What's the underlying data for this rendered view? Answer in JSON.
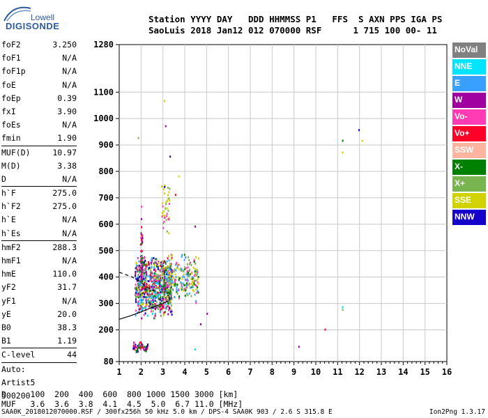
{
  "logo": {
    "top": "Lowell",
    "bottom": "DIGISONDE"
  },
  "header": {
    "line1": "Station YYYY DAY   DDD HHMMSS P1   FFS  S AXN PPS IGA PS",
    "line2": "SaoLuis 2018 Jan12 012 070000 RSF      1 715 100 00- 11"
  },
  "params": [
    {
      "label": "foF2",
      "value": "3.250"
    },
    {
      "label": "foF1",
      "value": "N/A"
    },
    {
      "label": "foF1p",
      "value": "N/A"
    },
    {
      "label": "foE",
      "value": "N/A"
    },
    {
      "label": "foEp",
      "value": "0.39"
    },
    {
      "label": "fxI",
      "value": "3.90"
    },
    {
      "label": "foEs",
      "value": "N/A"
    },
    {
      "label": "fmin",
      "value": "1.90"
    },
    {
      "label": "MUF(D)",
      "value": "10.97",
      "sep": true
    },
    {
      "label": "M(D)",
      "value": "3.38"
    },
    {
      "label": "D",
      "value": "N/A"
    },
    {
      "label": "h`F",
      "value": "275.0",
      "sep": true
    },
    {
      "label": "h`F2",
      "value": "275.0"
    },
    {
      "label": "h`E",
      "value": "N/A"
    },
    {
      "label": "h`Es",
      "value": "N/A"
    },
    {
      "label": "hmF2",
      "value": "288.3",
      "sep": true
    },
    {
      "label": "hmF1",
      "value": "N/A"
    },
    {
      "label": "hmE",
      "value": "110.0"
    },
    {
      "label": "yF2",
      "value": "31.7"
    },
    {
      "label": "yF1",
      "value": "N/A"
    },
    {
      "label": "yE",
      "value": "20.0"
    },
    {
      "label": "B0",
      "value": "38.3"
    },
    {
      "label": "B1",
      "value": "1.19"
    },
    {
      "label": "C-level",
      "value": "44",
      "sep": true
    }
  ],
  "auto": {
    "line1": "Auto:",
    "line2": "Artist5",
    "line3": "500200"
  },
  "legend": [
    {
      "label": "NoVal",
      "color": "#808080"
    },
    {
      "label": "NNE",
      "color": "#00e5ff"
    },
    {
      "label": "E",
      "color": "#3aa0ff"
    },
    {
      "label": "W",
      "color": "#a000a0"
    },
    {
      "label": "Vo-",
      "color": "#ff3cb4"
    },
    {
      "label": "Vo+",
      "color": "#ff0028"
    },
    {
      "label": "SSW",
      "color": "#ffb4a0"
    },
    {
      "label": "X-",
      "color": "#008000"
    },
    {
      "label": "X+",
      "color": "#78b450"
    },
    {
      "label": "SSE",
      "color": "#d2d200"
    },
    {
      "label": "NNW",
      "color": "#1400c8"
    }
  ],
  "footer": {
    "d_line": "D     100  200  400  600  800 1000 1500 3000 [km]",
    "muf_line": "MUF   3.6  3.6  3.8  4.1  4.5  5.0  6.7 11.0 [MHz]",
    "info": "SAA0K_2018012070000.RSF / 300fx256h 50 kHz 5.0 km / DPS-4 SAA0K 903 / 2.6 S 315.8 E",
    "version": "Ion2Png 1.3.17"
  },
  "chart_data": {
    "type": "scatter",
    "title": "",
    "xlabel": "",
    "ylabel": "",
    "xlim": [
      1,
      16
    ],
    "ylim": [
      80,
      1280
    ],
    "x_ticks": [
      1,
      2,
      3,
      4,
      5,
      6,
      7,
      8,
      9,
      10,
      11,
      12,
      13,
      14,
      15,
      16
    ],
    "y_ticks": [
      80,
      200,
      300,
      400,
      500,
      600,
      700,
      800,
      900,
      1000,
      1100,
      1280
    ],
    "grid": true,
    "ordinary_trace": [
      [
        1.0,
        240
      ],
      [
        1.5,
        253
      ],
      [
        2.0,
        268
      ],
      [
        2.5,
        285
      ],
      [
        3.0,
        300
      ],
      [
        3.25,
        310
      ]
    ],
    "dashed_trace": [
      [
        1.0,
        418
      ],
      [
        1.6,
        400
      ],
      [
        2.0,
        380
      ],
      [
        2.4,
        355
      ],
      [
        2.8,
        340
      ]
    ],
    "clusters": [
      {
        "x": [
          1.7,
          3.4
        ],
        "y": [
          240,
          490
        ],
        "n": 850,
        "colors": [
          "Vo+",
          "Vo-",
          "X-",
          "X+",
          "SSE",
          "E",
          "NNE",
          "W",
          "NNW",
          "NoVal"
        ]
      },
      {
        "x": [
          3.0,
          4.6
        ],
        "y": [
          300,
          500
        ],
        "n": 260,
        "colors": [
          "SSE",
          "X+",
          "X-",
          "Vo-",
          "E"
        ]
      },
      {
        "x": [
          1.95,
          2.05
        ],
        "y": [
          300,
          640
        ],
        "n": 60,
        "colors": [
          "Vo-",
          "W",
          "Vo+",
          "X-"
        ]
      },
      {
        "x": [
          1.6,
          2.3
        ],
        "y": [
          115,
          160
        ],
        "n": 60,
        "colors": [
          "Vo-",
          "W",
          "NNW",
          "Vo+",
          "X-"
        ]
      },
      {
        "x": [
          2.9,
          3.3
        ],
        "y": [
          540,
          800
        ],
        "n": 40,
        "colors": [
          "SSE",
          "X+",
          "Vo-"
        ]
      }
    ],
    "points": [
      {
        "x": 3.05,
        "y": 1070,
        "c": "SSE"
      },
      {
        "x": 3.1,
        "y": 975,
        "c": "W"
      },
      {
        "x": 3.3,
        "y": 860,
        "c": "NNW"
      },
      {
        "x": 3.05,
        "y": 745,
        "c": "NNW"
      },
      {
        "x": 3.55,
        "y": 715,
        "c": "Vo+"
      },
      {
        "x": 4.45,
        "y": 595,
        "c": "W"
      },
      {
        "x": 4.7,
        "y": 225,
        "c": "W"
      },
      {
        "x": 4.45,
        "y": 130,
        "c": "NNE"
      },
      {
        "x": 5.0,
        "y": 265,
        "c": "W"
      },
      {
        "x": 9.2,
        "y": 140,
        "c": "W"
      },
      {
        "x": 10.4,
        "y": 205,
        "c": "Vo+"
      },
      {
        "x": 11.2,
        "y": 920,
        "c": "X-"
      },
      {
        "x": 11.2,
        "y": 875,
        "c": "SSE"
      },
      {
        "x": 11.2,
        "y": 290,
        "c": "NNE"
      },
      {
        "x": 11.2,
        "y": 280,
        "c": "X+"
      },
      {
        "x": 11.95,
        "y": 960,
        "c": "NNW"
      },
      {
        "x": 12.1,
        "y": 920,
        "c": "SSE"
      },
      {
        "x": 1.85,
        "y": 930,
        "c": "X+"
      },
      {
        "x": 2.0,
        "y": 670,
        "c": "Vo-"
      },
      {
        "x": 3.7,
        "y": 785,
        "c": "SSE"
      }
    ]
  }
}
